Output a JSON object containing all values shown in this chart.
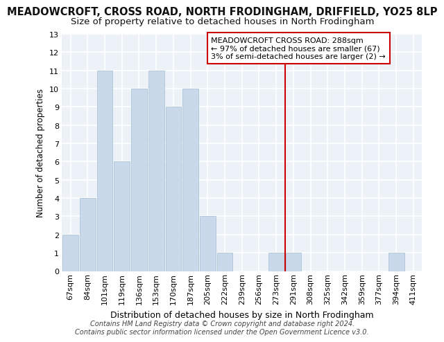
{
  "title": "MEADOWCROFT, CROSS ROAD, NORTH FRODINGHAM, DRIFFIELD, YO25 8LP",
  "subtitle": "Size of property relative to detached houses in North Frodingham",
  "xlabel": "Distribution of detached houses by size in North Frodingham",
  "ylabel": "Number of detached properties",
  "categories": [
    "67sqm",
    "84sqm",
    "101sqm",
    "119sqm",
    "136sqm",
    "153sqm",
    "170sqm",
    "187sqm",
    "205sqm",
    "222sqm",
    "239sqm",
    "256sqm",
    "273sqm",
    "291sqm",
    "308sqm",
    "325sqm",
    "342sqm",
    "359sqm",
    "377sqm",
    "394sqm",
    "411sqm"
  ],
  "values": [
    2,
    4,
    11,
    6,
    10,
    11,
    9,
    10,
    3,
    1,
    0,
    0,
    1,
    1,
    0,
    0,
    0,
    0,
    0,
    1,
    0
  ],
  "bar_color": "#c9d9ea",
  "bar_edge_color": "#adc4d8",
  "vline_color": "#cc0000",
  "annotation_text": "MEADOWCROFT CROSS ROAD: 288sqm\n← 97% of detached houses are smaller (67)\n3% of semi-detached houses are larger (2) →",
  "annotation_box_color": "#ffffff",
  "annotation_box_edge": "#cc0000",
  "ylim": [
    0,
    13
  ],
  "yticks": [
    0,
    1,
    2,
    3,
    4,
    5,
    6,
    7,
    8,
    9,
    10,
    11,
    12,
    13
  ],
  "footer": "Contains HM Land Registry data © Crown copyright and database right 2024.\nContains public sector information licensed under the Open Government Licence v3.0.",
  "bg_color": "#edf2f8",
  "title_fontsize": 10.5,
  "subtitle_fontsize": 9.5,
  "xlabel_fontsize": 9,
  "ylabel_fontsize": 8.5,
  "tick_fontsize": 8,
  "annotation_fontsize": 8,
  "footer_fontsize": 7
}
